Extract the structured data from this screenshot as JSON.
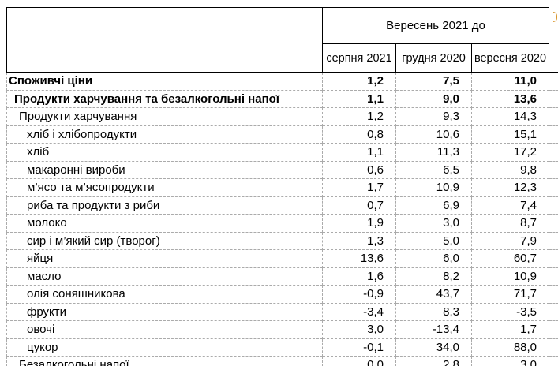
{
  "table": {
    "header": {
      "span_title": "Вересень 2021 до",
      "columns": [
        "серпня 2021",
        "грудня 2020",
        "вересня 2020"
      ]
    },
    "rows": [
      {
        "label": "Споживчі ціни",
        "values": [
          "1,2",
          "7,5",
          "11,0"
        ],
        "bold": true,
        "indent": 0
      },
      {
        "label": "Продукти харчування та безалкогольні напої",
        "values": [
          "1,1",
          "9,0",
          "13,6"
        ],
        "bold": true,
        "indent": 1
      },
      {
        "label": "Продукти харчування",
        "values": [
          "1,2",
          "9,3",
          "14,3"
        ],
        "bold": false,
        "indent": 2
      },
      {
        "label": "хліб і хлібопродукти",
        "values": [
          "0,8",
          "10,6",
          "15,1"
        ],
        "bold": false,
        "indent": 3
      },
      {
        "label": "хліб",
        "values": [
          "1,1",
          "11,3",
          "17,2"
        ],
        "bold": false,
        "indent": 3
      },
      {
        "label": "макаронні вироби",
        "values": [
          "0,6",
          "6,5",
          "9,8"
        ],
        "bold": false,
        "indent": 3
      },
      {
        "label": "м’ясо та м’ясопродукти",
        "values": [
          "1,7",
          "10,9",
          "12,3"
        ],
        "bold": false,
        "indent": 3
      },
      {
        "label": "риба та продукти з риби",
        "values": [
          "0,7",
          "6,9",
          "7,4"
        ],
        "bold": false,
        "indent": 3
      },
      {
        "label": "молоко",
        "values": [
          "1,9",
          "3,0",
          "8,7"
        ],
        "bold": false,
        "indent": 3
      },
      {
        "label": "сир і м’який сир (творог)",
        "values": [
          "1,3",
          "5,0",
          "7,9"
        ],
        "bold": false,
        "indent": 3
      },
      {
        "label": "яйця",
        "values": [
          "13,6",
          "6,0",
          "60,7"
        ],
        "bold": false,
        "indent": 3
      },
      {
        "label": "масло",
        "values": [
          "1,6",
          "8,2",
          "10,9"
        ],
        "bold": false,
        "indent": 3
      },
      {
        "label": "олія соняшникова",
        "values": [
          "-0,9",
          "43,7",
          "71,7"
        ],
        "bold": false,
        "indent": 3
      },
      {
        "label": "фрукти",
        "values": [
          "-3,4",
          "8,3",
          "-3,5"
        ],
        "bold": false,
        "indent": 3
      },
      {
        "label": "овочі",
        "values": [
          "3,0",
          "-13,4",
          "1,7"
        ],
        "bold": false,
        "indent": 3
      },
      {
        "label": "цукор",
        "values": [
          "-0,1",
          "34,0",
          "88,0"
        ],
        "bold": false,
        "indent": 3
      },
      {
        "label": "Безалкогольні напої",
        "values": [
          "0,0",
          "2,8",
          "3,0"
        ],
        "bold": false,
        "indent": 2
      }
    ]
  },
  "colors": {
    "header_border": "#000000",
    "body_border": "#ababab",
    "text": "#000000",
    "clipped_fragment_orange": "#d9972f",
    "background": "#ffffff"
  },
  "chart_data": {
    "type": "table",
    "title": "Вересень 2021 до",
    "columns": [
      "серпня 2021",
      "грудня 2020",
      "вересня 2020"
    ],
    "row_labels": [
      "Споживчі ціни",
      "Продукти харчування та безалкогольні напої",
      "Продукти харчування",
      "хліб і хлібопродукти",
      "хліб",
      "макаронні вироби",
      "м’ясо та м’ясопродукти",
      "риба та продукти з риби",
      "молоко",
      "сир і м’який сир (творог)",
      "яйця",
      "масло",
      "олія соняшникова",
      "фрукти",
      "овочі",
      "цукор",
      "Безалкогольні напої"
    ],
    "values": [
      [
        1.2,
        7.5,
        11.0
      ],
      [
        1.1,
        9.0,
        13.6
      ],
      [
        1.2,
        9.3,
        14.3
      ],
      [
        0.8,
        10.6,
        15.1
      ],
      [
        1.1,
        11.3,
        17.2
      ],
      [
        0.6,
        6.5,
        9.8
      ],
      [
        1.7,
        10.9,
        12.3
      ],
      [
        0.7,
        6.9,
        7.4
      ],
      [
        1.9,
        3.0,
        8.7
      ],
      [
        1.3,
        5.0,
        7.9
      ],
      [
        13.6,
        6.0,
        60.7
      ],
      [
        1.6,
        8.2,
        10.9
      ],
      [
        -0.9,
        43.7,
        71.7
      ],
      [
        -3.4,
        8.3,
        -3.5
      ],
      [
        3.0,
        -13.4,
        1.7
      ],
      [
        -0.1,
        34.0,
        88.0
      ],
      [
        0.0,
        2.8,
        3.0
      ]
    ]
  }
}
